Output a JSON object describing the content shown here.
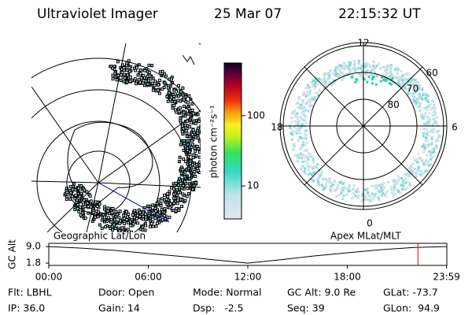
{
  "header": {
    "title": "Ultraviolet Imager",
    "date": "25 Mar 07",
    "time": "22:15:32 UT"
  },
  "colorbar": {
    "label": "photon cm⁻²s⁻¹",
    "range": [
      3.4,
      560
    ],
    "log": true,
    "ticks": [
      10,
      100
    ]
  },
  "polar_map": {
    "mlt_labels": {
      "top": "12",
      "left": "18",
      "right": "6",
      "bottom": "0"
    },
    "lat_labels": [
      60,
      70,
      80
    ]
  },
  "orbit_plot": {
    "left_label": "Geographic Lat/Lon",
    "right_label": "Apex MLat/MLT",
    "y_label": "GC Alt",
    "x": [
      0,
      2,
      4,
      6,
      8,
      10,
      12,
      14,
      16,
      18,
      20,
      22,
      24
    ],
    "values": [
      9.0,
      8.3,
      7.3,
      6.0,
      4.7,
      3.2,
      1.8,
      3.3,
      4.9,
      6.3,
      7.6,
      8.6,
      9.0
    ],
    "xlim": [
      0,
      24
    ],
    "ylim": [
      0.8,
      10.4
    ],
    "yticks": [
      {
        "value": 9.0,
        "label": "9.0"
      },
      {
        "value": 1.8,
        "label": "1.8"
      }
    ],
    "xticks": [
      {
        "value": 0,
        "label": "00:00"
      },
      {
        "value": 6,
        "label": "06:00"
      },
      {
        "value": 12,
        "label": "12:00"
      },
      {
        "value": 18,
        "label": "18:00"
      },
      {
        "value": 23.983,
        "label": "23:59"
      }
    ],
    "current_time": 22.26
  },
  "info": [
    [
      "Flt: LBHL",
      "Door: Open",
      "Mode: Normal",
      "GC Alt: 9.0 Re",
      "GLat: -73.7"
    ],
    [
      "IP: 36.0",
      "Gain: 14",
      "Dsp:   -2.5",
      "Seq: 39",
      "GLon:  94.9"
    ]
  ]
}
